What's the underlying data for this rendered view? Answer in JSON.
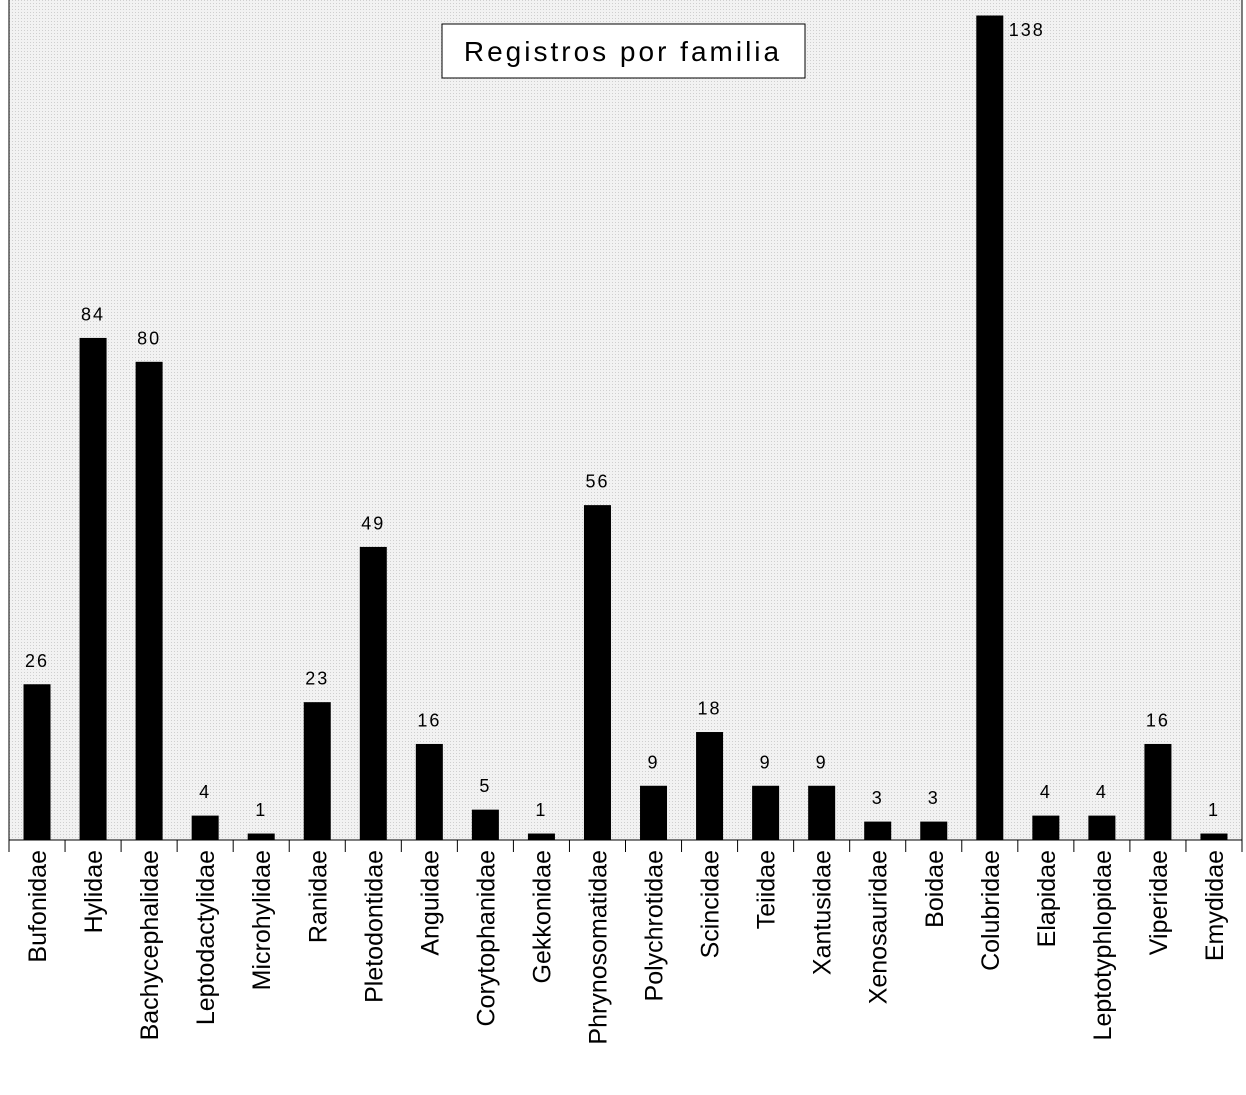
{
  "chart_data": {
    "type": "bar",
    "title": "Registros por familia",
    "xlabel": "",
    "ylabel": "",
    "ylim": [
      0,
      138
    ],
    "grid": false,
    "legend": "none",
    "colors": {
      "bar": "#000000",
      "plot_background": "#ececec"
    },
    "categories": [
      "Bufonidae",
      "Hylidae",
      "Bachycephalidae",
      "Leptodactylidae",
      "Microhylidae",
      "Ranidae",
      "Pletodontidae",
      "Anguidae",
      "Corytophanidae",
      "Gekkonidae",
      "Phrynosomatidae",
      "Polychrotidae",
      "Scincidae",
      "Teiidae",
      "Xantusidae",
      "Xenosauridae",
      "Boidae",
      "Colubridae",
      "Elapidae",
      "Leptotyphlopidae",
      "Viperidae",
      "Emydidae"
    ],
    "values": [
      26,
      84,
      80,
      4,
      1,
      23,
      49,
      16,
      5,
      1,
      56,
      9,
      18,
      9,
      9,
      3,
      3,
      138,
      4,
      4,
      16,
      1
    ]
  }
}
